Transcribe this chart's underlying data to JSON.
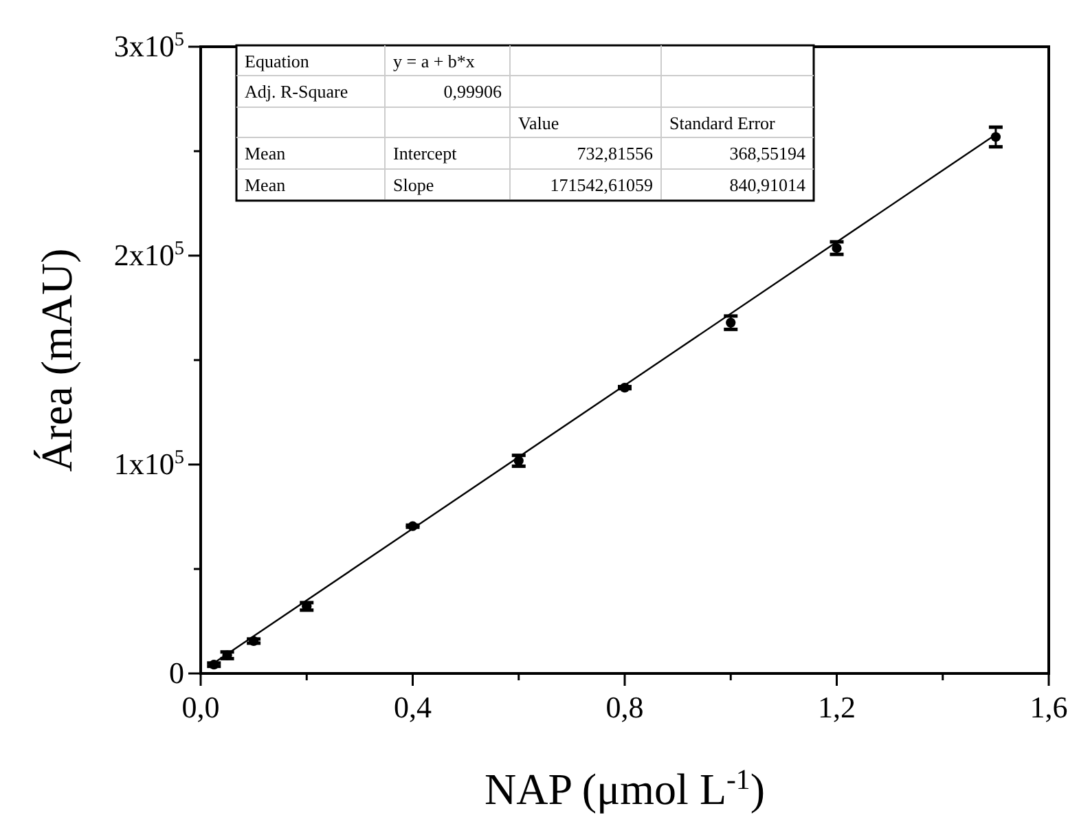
{
  "chart_data": {
    "type": "scatter",
    "xlabel": "NAP (μmol L$^{-1}$)",
    "ylabel": "Área (mAU)",
    "xlim": [
      0,
      1.6
    ],
    "ylim": [
      0,
      300000
    ],
    "xticks": [
      {
        "value": 0,
        "label": "0,0"
      },
      {
        "value": 0.2,
        "label": null
      },
      {
        "value": 0.4,
        "label": "0,4"
      },
      {
        "value": 0.6,
        "label": null
      },
      {
        "value": 0.8,
        "label": "0,8"
      },
      {
        "value": 1.0,
        "label": null
      },
      {
        "value": 1.2,
        "label": "1,2"
      },
      {
        "value": 1.4,
        "label": null
      },
      {
        "value": 1.6,
        "label": "1,6"
      }
    ],
    "yticks": [
      {
        "value": 0,
        "label": "0"
      },
      {
        "value": 50000,
        "label": null
      },
      {
        "value": 100000,
        "label": "1x10$^{5}$"
      },
      {
        "value": 150000,
        "label": null
      },
      {
        "value": 200000,
        "label": "2x10$^{5}$"
      },
      {
        "value": 250000,
        "label": null
      },
      {
        "value": 300000,
        "label": "3x10$^{5}$"
      }
    ],
    "grid": false,
    "series": [
      {
        "marker": "circle",
        "color": "#000000",
        "x": [
          0.025,
          0.05,
          0.1,
          0.2,
          0.4,
          0.6,
          0.8,
          1.0,
          1.2,
          1.5
        ],
        "values": [
          4200,
          8700,
          15500,
          32100,
          70500,
          101800,
          136800,
          167900,
          203600,
          256800
        ],
        "errors": [
          800,
          1600,
          1000,
          1800,
          500,
          2600,
          500,
          3200,
          3000,
          4700
        ]
      },
      {
        "type": "line",
        "color": "#000000",
        "x": [
          0.025,
          1.5
        ],
        "values": [
          5000,
          258000
        ]
      }
    ],
    "annotations": [
      "Equation",
      "y = a + b*x",
      "Adj. R-Square",
      "0,99906",
      "Value",
      "Standard Error",
      "Mean",
      "Intercept",
      "732,81556",
      "368,55194",
      "Mean",
      "Slope",
      "171542,61059",
      "840,91014"
    ]
  }
}
